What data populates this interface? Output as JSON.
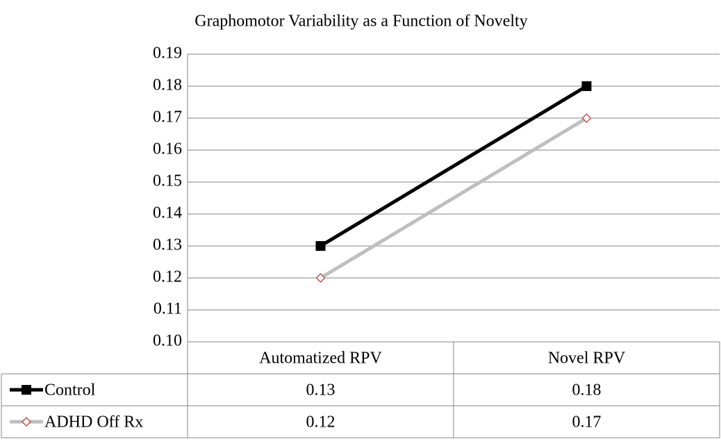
{
  "chart_data": {
    "type": "line",
    "title": "Graphomotor Variability as a Function of Novelty",
    "categories": [
      "Automatized RPV",
      "Novel RPV"
    ],
    "series": [
      {
        "name": "Control",
        "color": "#000000",
        "marker": "square",
        "values": [
          0.13,
          0.18
        ]
      },
      {
        "name": "ADHD Off Rx",
        "color": "#bfbfbf",
        "marker": "diamond",
        "values": [
          0.12,
          0.17
        ]
      }
    ],
    "ylim": [
      0.1,
      0.19
    ],
    "yticks": [
      {
        "value": 0.1,
        "label": "0.10"
      },
      0.11,
      0.12,
      0.13,
      0.14,
      0.15,
      0.16,
      0.17,
      0.18,
      0.19
    ],
    "grid": true,
    "data_table": true
  }
}
